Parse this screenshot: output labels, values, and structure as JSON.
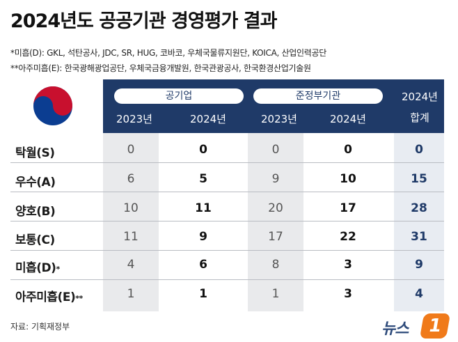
{
  "title": "2024년도 공공기관 경영평가 결과",
  "notes": {
    "note1": "*미흡(D): GKL, 석탄공사, JDC, SR, HUG, 코바코, 우체국물류지원단, KOICA, 산업인력공단",
    "note2": "**아주미흡(E): 한국광해광업공단, 우체국금융개발원, 한국관광공사, 한국환경산업기술원"
  },
  "header": {
    "group1": "공기업",
    "group2": "준정부기관",
    "year_a": "2023년",
    "year_b": "2024년",
    "total_line1": "2024년",
    "total_line2": "합계"
  },
  "rows": [
    {
      "label": "탁월(S)",
      "mark": "",
      "c1": "0",
      "c2": "0",
      "c3": "0",
      "c4": "0",
      "total": "0"
    },
    {
      "label": "우수(A)",
      "mark": "",
      "c1": "6",
      "c2": "5",
      "c3": "9",
      "c4": "10",
      "total": "15"
    },
    {
      "label": "양호(B)",
      "mark": "",
      "c1": "10",
      "c2": "11",
      "c3": "20",
      "c4": "17",
      "total": "28"
    },
    {
      "label": "보통(C)",
      "mark": "",
      "c1": "11",
      "c2": "9",
      "c3": "17",
      "c4": "22",
      "total": "31"
    },
    {
      "label": "미흡(D)",
      "mark": "*",
      "c1": "4",
      "c2": "6",
      "c3": "8",
      "c4": "3",
      "total": "9"
    },
    {
      "label": "아주미흡(E)",
      "mark": "**",
      "c1": "1",
      "c2": "1",
      "c3": "1",
      "c4": "3",
      "total": "4"
    }
  ],
  "source": "자료: 기획재정부",
  "logo": {
    "text": "뉴스",
    "badge": "1"
  },
  "colors": {
    "header_bg": "#1f3a68",
    "shade_col": "#e9eaec",
    "total_col": "#e8ecf2",
    "logo_orange": "#f07a1a",
    "emblem_red": "#c8102e",
    "emblem_blue": "#0b3d91"
  },
  "chart_data": {
    "type": "table",
    "title": "2024년도 공공기관 경영평가 결과",
    "columns": [
      "공기업 2023년",
      "공기업 2024년",
      "준정부기관 2023년",
      "준정부기관 2024년",
      "2024년 합계"
    ],
    "categories": [
      "탁월(S)",
      "우수(A)",
      "양호(B)",
      "보통(C)",
      "미흡(D)",
      "아주미흡(E)"
    ],
    "series": [
      {
        "name": "공기업 2023년",
        "values": [
          0,
          6,
          10,
          11,
          4,
          1
        ]
      },
      {
        "name": "공기업 2024년",
        "values": [
          0,
          5,
          11,
          9,
          6,
          1
        ]
      },
      {
        "name": "준정부기관 2023년",
        "values": [
          0,
          9,
          20,
          17,
          8,
          1
        ]
      },
      {
        "name": "준정부기관 2024년",
        "values": [
          0,
          10,
          17,
          22,
          3,
          3
        ]
      },
      {
        "name": "2024년 합계",
        "values": [
          0,
          15,
          28,
          31,
          9,
          4
        ]
      }
    ]
  }
}
